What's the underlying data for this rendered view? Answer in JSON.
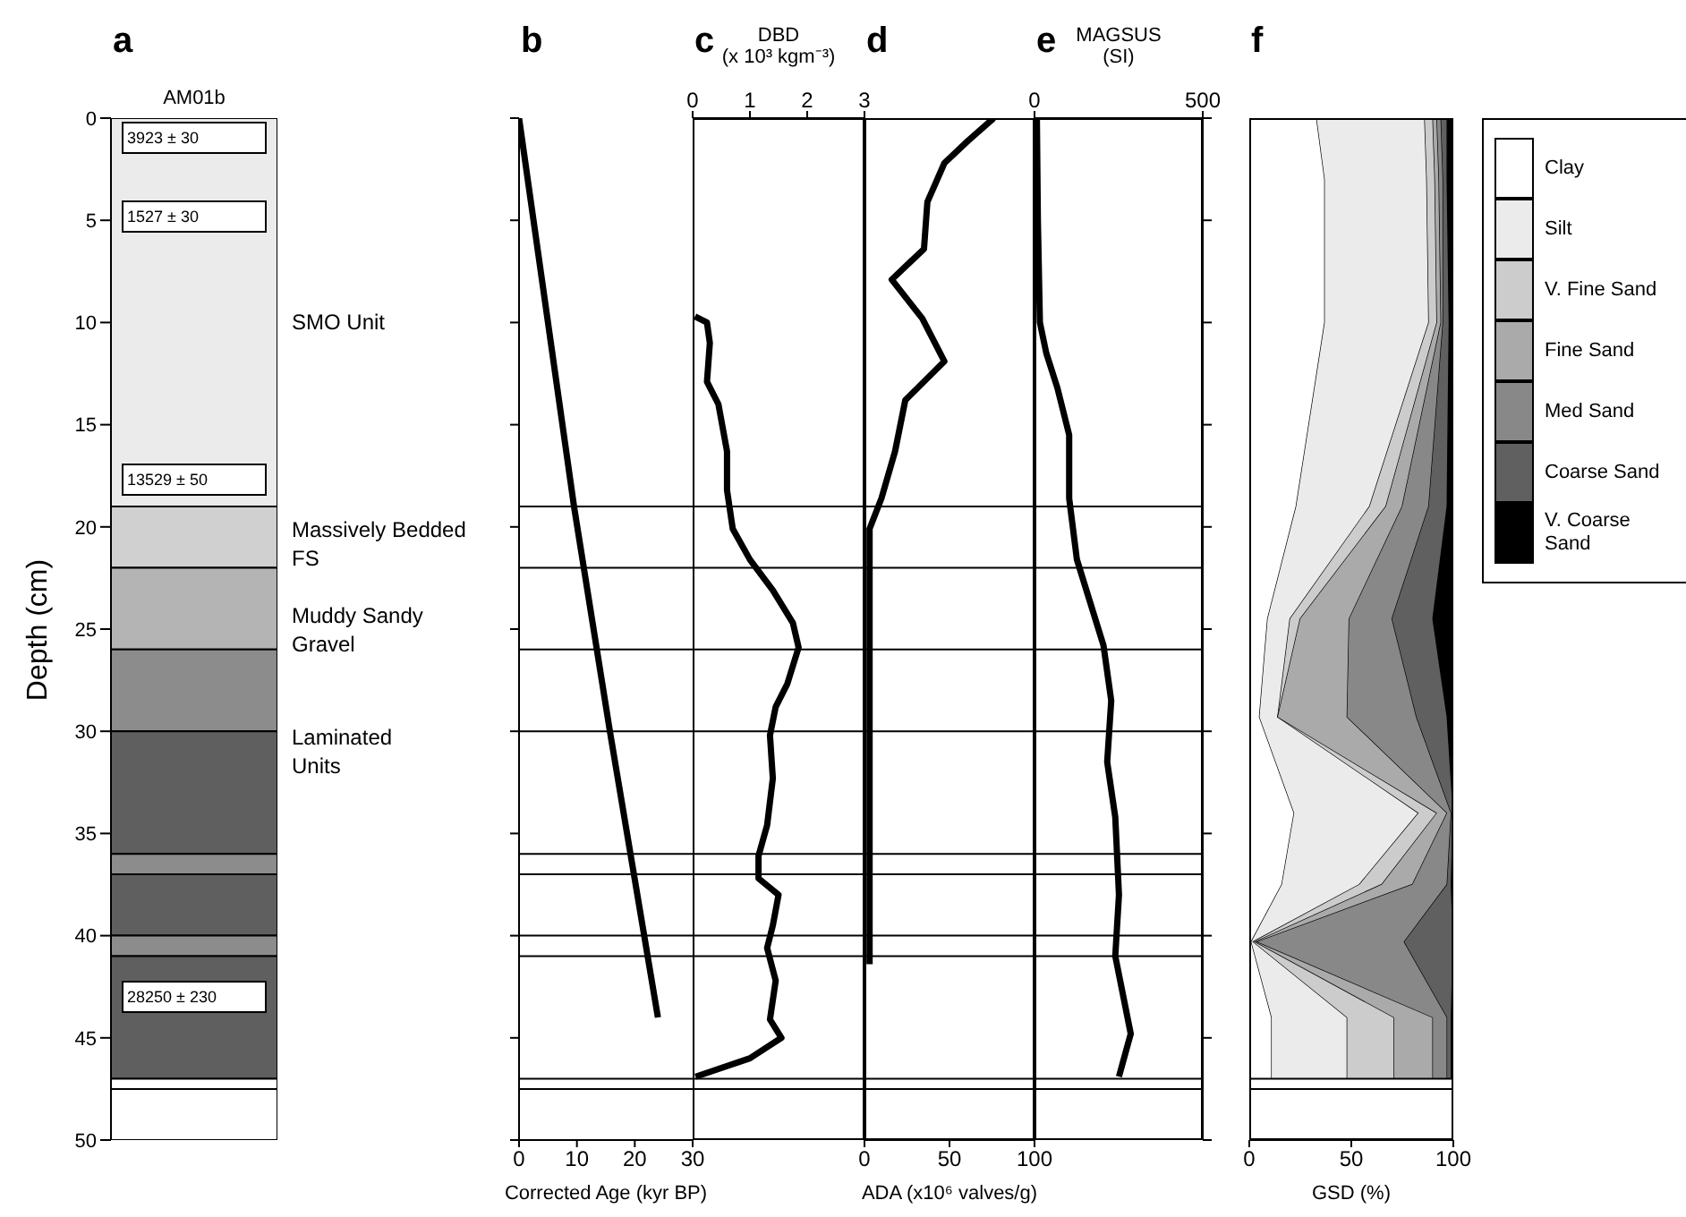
{
  "chart_data": [
    {
      "type": "bar",
      "title": "a",
      "stacked": true,
      "categories": [
        "AM01b"
      ],
      "ylabel": "Depth (cm)",
      "ylim": [
        50,
        0
      ],
      "yticks": [
        0,
        5,
        10,
        15,
        20,
        25,
        30,
        35,
        40,
        45,
        50
      ],
      "series": [
        {
          "color": "#ebebeb",
          "values": [
            19
          ]
        },
        {
          "color": "#d0d0d0",
          "values": [
            3
          ]
        },
        {
          "color": "#b4b4b4",
          "values": [
            4
          ]
        },
        {
          "color": "#8c8c8c",
          "values": [
            4
          ]
        },
        {
          "color": "#5f5f5f",
          "values": [
            6
          ]
        },
        {
          "color": "#8c8c8c",
          "values": [
            1
          ]
        },
        {
          "color": "#5f5f5f",
          "values": [
            3
          ]
        },
        {
          "color": "#8c8c8c",
          "values": [
            1
          ]
        },
        {
          "color": "#5f5f5f",
          "values": [
            6
          ]
        },
        {
          "color": "#ffffff",
          "values": [
            0.5
          ]
        },
        {
          "color": "#ffffff",
          "values": [
            2.5
          ]
        }
      ],
      "annotations": [
        "3923 ± 30",
        "1527 ± 30",
        "13529 ± 50",
        "28250 ± 230",
        "SMO Unit",
        "Massively Bedded\nFS",
        "Muddy Sandy\nGravel",
        "Laminated\nUnits"
      ]
    },
    {
      "type": "line",
      "title": "b",
      "orientation": "horizontal",
      "x": [
        0,
        19,
        30,
        44
      ],
      "values": [
        0,
        9.5,
        15.7,
        24
      ],
      "color": "#000000",
      "xlabel": "Corrected Age (kyr BP)",
      "xlim": [
        0,
        30
      ],
      "xticks": [
        0,
        10,
        20,
        30
      ],
      "ylim": [
        50,
        0
      ],
      "yticks": [
        0,
        5,
        10,
        15,
        20,
        25,
        30,
        35,
        40,
        45,
        50
      ],
      "tick_labels": "x",
      "ref_lines": [
        {
          "axis": "y",
          "value": 19
        },
        {
          "axis": "y",
          "value": 22
        },
        {
          "axis": "y",
          "value": 26
        },
        {
          "axis": "y",
          "value": 30
        },
        {
          "axis": "y",
          "value": 36
        },
        {
          "axis": "y",
          "value": 37
        },
        {
          "axis": "y",
          "value": 40
        },
        {
          "axis": "y",
          "value": 41
        },
        {
          "axis": "y",
          "value": 47
        },
        {
          "axis": "y",
          "value": 47.5
        }
      ]
    },
    {
      "type": "line",
      "title": "c",
      "orientation": "horizontal",
      "x": [
        9.7,
        10.0,
        11.0,
        12.9,
        14.0,
        16.3,
        18.2,
        20.1,
        21.6,
        23.1,
        24.7,
        25.9,
        27.7,
        28.8,
        30.2,
        32.3,
        34.6,
        36.1,
        37.2,
        38.0,
        39.5,
        40.6,
        42.2,
        44.1,
        45.0,
        46.0,
        46.9
      ],
      "series": [
        {
          "color": "#000000",
          "axis": "x2",
          "values": [
            0.04,
            0.25,
            0.3,
            0.25,
            0.45,
            0.6,
            0.6,
            0.7,
            1.0,
            1.4,
            1.75,
            1.85,
            1.65,
            1.45,
            1.35,
            1.4,
            1.3,
            1.15,
            1.15,
            1.5,
            1.4,
            1.3,
            1.45,
            1.35,
            1.55,
            1.0,
            0.05
          ]
        }
      ],
      "x2label": "DBD\n(x 10³ kgm⁻³)",
      "x2lim": [
        0,
        3
      ],
      "x2ticks": [
        0,
        1,
        2,
        3
      ],
      "ylim": [
        50,
        0
      ],
      "tick_labels": "x",
      "ref_lines": [
        {
          "axis": "y",
          "value": 19
        },
        {
          "axis": "y",
          "value": 22
        },
        {
          "axis": "y",
          "value": 26
        },
        {
          "axis": "y",
          "value": 30
        },
        {
          "axis": "y",
          "value": 36
        },
        {
          "axis": "y",
          "value": 37
        },
        {
          "axis": "y",
          "value": 40
        },
        {
          "axis": "y",
          "value": 41
        },
        {
          "axis": "y",
          "value": 47
        },
        {
          "axis": "y",
          "value": 47.5
        }
      ]
    },
    {
      "type": "line",
      "title": "d",
      "orientation": "horizontal",
      "x": [
        0,
        1.1,
        2.2,
        4.1,
        6.4,
        7.9,
        9.8,
        11.9,
        13.8,
        16.3,
        18.6,
        20.1,
        41.4
      ],
      "values": [
        76,
        61,
        47,
        37,
        35,
        16,
        34,
        47,
        24,
        18,
        10,
        3,
        3
      ],
      "color": "#000000",
      "xlabel": "ADA (x10⁶ valves/g)",
      "xlim": [
        0,
        100
      ],
      "xticks": [
        0,
        50,
        100
      ],
      "ylim": [
        50,
        0
      ],
      "tick_labels": "x",
      "ref_lines": [
        {
          "axis": "y",
          "value": 19
        },
        {
          "axis": "y",
          "value": 22
        },
        {
          "axis": "y",
          "value": 26
        },
        {
          "axis": "y",
          "value": 30
        },
        {
          "axis": "y",
          "value": 36
        },
        {
          "axis": "y",
          "value": 37
        },
        {
          "axis": "y",
          "value": 40
        },
        {
          "axis": "y",
          "value": 41
        },
        {
          "axis": "y",
          "value": 47
        },
        {
          "axis": "y",
          "value": 47.5
        }
      ]
    },
    {
      "type": "line",
      "title": "e",
      "orientation": "horizontal",
      "x": [
        0,
        5,
        10,
        11.5,
        13.2,
        15.5,
        18.6,
        21.6,
        25.8,
        28.5,
        31.5,
        34.2,
        38.0,
        41.0,
        44.8,
        46.9
      ],
      "series": [
        {
          "color": "#000000",
          "axis": "x2",
          "values": [
            7,
            10,
            16,
            35,
            68,
            103,
            103,
            126,
            205,
            228,
            216,
            240,
            251,
            240,
            286,
            251
          ]
        }
      ],
      "x2label": "MAGSUS\n(SI)",
      "x2lim": [
        0,
        500
      ],
      "x2ticks": [
        0,
        500
      ],
      "ylim": [
        50,
        0
      ],
      "yticks": [
        0,
        5,
        10,
        15,
        20,
        25,
        30,
        35,
        40,
        45,
        50
      ],
      "tick_labels": "x",
      "ref_lines": [
        {
          "axis": "y",
          "value": 19
        },
        {
          "axis": "y",
          "value": 22
        },
        {
          "axis": "y",
          "value": 26
        },
        {
          "axis": "y",
          "value": 30
        },
        {
          "axis": "y",
          "value": 36
        },
        {
          "axis": "y",
          "value": 37
        },
        {
          "axis": "y",
          "value": 40
        },
        {
          "axis": "y",
          "value": 41
        },
        {
          "axis": "y",
          "value": 47
        },
        {
          "axis": "y",
          "value": 47.5
        }
      ]
    },
    {
      "type": "area",
      "title": "f",
      "orientation": "horizontal",
      "stacked": true,
      "legend": "right",
      "x": [
        0,
        3,
        10,
        19,
        24.5,
        29.3,
        34,
        37.5,
        40.3,
        44,
        47
      ],
      "xlabel": "GSD (%)",
      "xlim": [
        0,
        100
      ],
      "xticks": [
        0,
        50,
        100
      ],
      "ylim": [
        50,
        0
      ],
      "tick_labels": "x",
      "series": [
        {
          "name": "Clay",
          "color": "#ffffff",
          "values": [
            33,
            37,
            37,
            23,
            9,
            5,
            22,
            16,
            1,
            11,
            11
          ]
        },
        {
          "name": "Silt",
          "color": "#ebebeb",
          "values": [
            53,
            50,
            51,
            36,
            11,
            9,
            61,
            38,
            1,
            37,
            37
          ]
        },
        {
          "name": "V. Fine Sand",
          "color": "#cccccc",
          "values": [
            4,
            4,
            4,
            8,
            5,
            0,
            9,
            11,
            1,
            23,
            23
          ]
        },
        {
          "name": "Fine Sand",
          "color": "#aaaaaa",
          "values": [
            2,
            2,
            2,
            8,
            24,
            34,
            5,
            15,
            1,
            19,
            19
          ]
        },
        {
          "name": "Med Sand",
          "color": "#888888",
          "values": [
            2,
            2,
            1,
            13,
            21,
            34,
            2,
            17,
            72,
            7,
            7
          ]
        },
        {
          "name": "Coarse Sand",
          "color": "#606060",
          "values": [
            3,
            2,
            3,
            9,
            20,
            15,
            1,
            2,
            24,
            2,
            2
          ]
        },
        {
          "name": "V. Coarse Sand",
          "color": "#000000",
          "values": [
            3,
            3,
            2,
            3,
            10,
            3,
            0,
            1,
            0,
            1,
            1
          ]
        }
      ],
      "ref_lines": [
        {
          "axis": "y",
          "value": 47
        },
        {
          "axis": "y",
          "value": 47.5
        }
      ]
    }
  ]
}
